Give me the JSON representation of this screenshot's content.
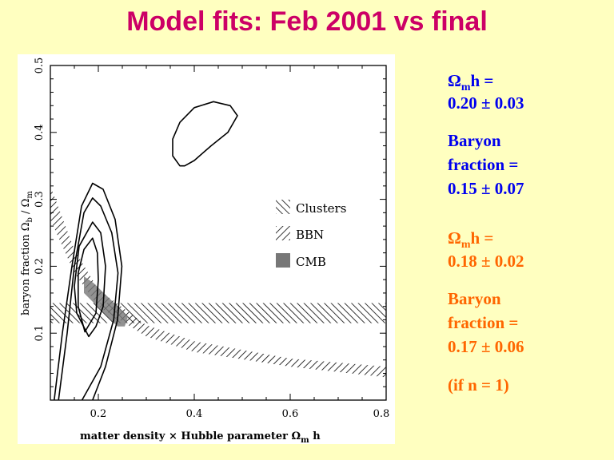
{
  "title": "Model fits: Feb 2001 vs final",
  "results": {
    "feb2001": {
      "omega_symbol": "Ω",
      "omega_sub": "m",
      "omega_rest": "h =",
      "omega_value": "0.20 ± 0.03",
      "baryon_line1": "Baryon",
      "baryon_line2": "fraction =",
      "baryon_value": "0.15 ± 0.07",
      "color": "#0000EE"
    },
    "final": {
      "omega_symbol": "Ω",
      "omega_sub": "m",
      "omega_rest": "h =",
      "omega_value": "0.18 ± 0.02",
      "baryon_line1": "Baryon",
      "baryon_line2": "fraction =",
      "baryon_value": "0.17 ± 0.06",
      "note": "(if n = 1)",
      "color": "#FF6600"
    }
  },
  "chart_data": {
    "type": "contour",
    "xlabel": "matter density × Hubble parameter  Ωm h",
    "xlabel_parts": {
      "text": "matter density × Hubble parameter  Ω",
      "sub": "m",
      "tail": " h"
    },
    "ylabel": "baryon fraction  Ωb / Ωm",
    "ylabel_parts": {
      "text": "baryon fraction  Ω",
      "sub1": "b",
      "mid": " / Ω",
      "sub2": "m"
    },
    "xlim": [
      0.1,
      0.8
    ],
    "ylim": [
      0,
      0.5
    ],
    "xticks": [
      0.2,
      0.4,
      0.6,
      0.8
    ],
    "xtick_labels": [
      "0.2",
      "0.4",
      "0.6",
      "0.8"
    ],
    "yticks": [
      0.1,
      0.2,
      0.3,
      0.4,
      0.5
    ],
    "ytick_labels": [
      "0.1",
      "0.2",
      "0.3",
      "0.4",
      "0.5"
    ],
    "contours": [
      {
        "name": "feb2001-fit",
        "closed": true,
        "points": [
          [
            0.37,
            0.35
          ],
          [
            0.355,
            0.365
          ],
          [
            0.355,
            0.39
          ],
          [
            0.37,
            0.415
          ],
          [
            0.4,
            0.437
          ],
          [
            0.44,
            0.446
          ],
          [
            0.475,
            0.44
          ],
          [
            0.49,
            0.425
          ],
          [
            0.47,
            0.4
          ],
          [
            0.435,
            0.38
          ],
          [
            0.4,
            0.358
          ],
          [
            0.38,
            0.35
          ]
        ]
      },
      {
        "name": "final-fit-1",
        "closed": true,
        "points": [
          [
            0.172,
            0.102
          ],
          [
            0.158,
            0.14
          ],
          [
            0.158,
            0.19
          ],
          [
            0.17,
            0.225
          ],
          [
            0.188,
            0.242
          ],
          [
            0.198,
            0.22
          ],
          [
            0.2,
            0.18
          ],
          [
            0.195,
            0.13
          ]
        ]
      },
      {
        "name": "final-fit-2",
        "closed": true,
        "points": [
          [
            0.18,
            0.095
          ],
          [
            0.155,
            0.13
          ],
          [
            0.15,
            0.17
          ],
          [
            0.16,
            0.23
          ],
          [
            0.188,
            0.266
          ],
          [
            0.205,
            0.25
          ],
          [
            0.215,
            0.2
          ],
          [
            0.21,
            0.14
          ],
          [
            0.195,
            0.11
          ]
        ]
      },
      {
        "name": "final-fit-3",
        "closed": false,
        "points": [
          [
            0.117,
            0
          ],
          [
            0.135,
            0.1
          ],
          [
            0.15,
            0.2
          ],
          [
            0.17,
            0.28
          ],
          [
            0.188,
            0.302
          ],
          [
            0.205,
            0.29
          ],
          [
            0.228,
            0.25
          ],
          [
            0.241,
            0.19
          ],
          [
            0.232,
            0.12
          ],
          [
            0.205,
            0.05
          ],
          [
            0.166,
            0
          ]
        ]
      },
      {
        "name": "final-fit-4",
        "closed": false,
        "points": [
          [
            0.108,
            0
          ],
          [
            0.125,
            0.1
          ],
          [
            0.145,
            0.2
          ],
          [
            0.165,
            0.29
          ],
          [
            0.188,
            0.324
          ],
          [
            0.21,
            0.315
          ],
          [
            0.235,
            0.27
          ],
          [
            0.249,
            0.2
          ],
          [
            0.24,
            0.12
          ],
          [
            0.215,
            0.05
          ],
          [
            0.188,
            0
          ]
        ]
      }
    ],
    "bands": [
      {
        "name": "Clusters",
        "hatch": "back",
        "upper": [
          [
            0.1,
            0.145
          ],
          [
            0.8,
            0.145
          ]
        ],
        "lower": [
          [
            0.1,
            0.115
          ],
          [
            0.8,
            0.115
          ]
        ]
      },
      {
        "name": "BBN",
        "hatch": "forward",
        "upper": [
          [
            0.1,
            0.32
          ],
          [
            0.15,
            0.225
          ],
          [
            0.2,
            0.165
          ],
          [
            0.3,
            0.112
          ],
          [
            0.4,
            0.088
          ],
          [
            0.6,
            0.062
          ],
          [
            0.8,
            0.05
          ]
        ],
        "lower": [
          [
            0.1,
            0.27
          ],
          [
            0.15,
            0.19
          ],
          [
            0.2,
            0.14
          ],
          [
            0.3,
            0.095
          ],
          [
            0.4,
            0.072
          ],
          [
            0.6,
            0.05
          ],
          [
            0.8,
            0.034
          ]
        ]
      }
    ],
    "regions": [
      {
        "name": "CMB",
        "fill": "#777777",
        "points": [
          [
            0.17,
            0.185
          ],
          [
            0.19,
            0.175
          ],
          [
            0.262,
            0.125
          ],
          [
            0.255,
            0.11
          ],
          [
            0.24,
            0.11
          ],
          [
            0.17,
            0.16
          ]
        ]
      }
    ],
    "legend": {
      "position": "right",
      "entries": [
        "Clusters",
        "BBN",
        "CMB"
      ]
    }
  }
}
